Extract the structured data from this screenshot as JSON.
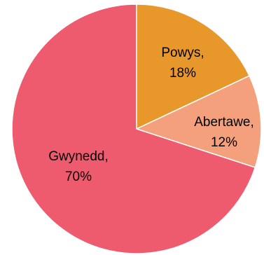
{
  "chart_data": {
    "type": "pie",
    "slices": [
      {
        "name": "Powys",
        "label": "Powys,",
        "percent_label": "18%",
        "value": 18,
        "color": "#E8972B"
      },
      {
        "name": "Abertawe",
        "label": "Abertawe,",
        "percent_label": "12%",
        "value": 12,
        "color": "#F4A07C"
      },
      {
        "name": "Gwynedd",
        "label": "Gwynedd,",
        "percent_label": "70%",
        "value": 70,
        "color": "#EE5A6E"
      }
    ]
  }
}
